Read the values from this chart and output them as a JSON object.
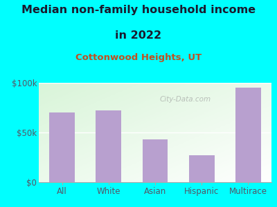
{
  "title_line1": "Median non-family household income",
  "title_line2": "in 2022",
  "subtitle": "Cottonwood Heights, UT",
  "categories": [
    "All",
    "White",
    "Asian",
    "Hispanic",
    "Multirace"
  ],
  "values": [
    70000,
    72000,
    43000,
    27000,
    95000
  ],
  "bar_color": "#b8a0cf",
  "background_color": "#00ffff",
  "plot_bg_color": "#eaf4e8",
  "title_color": "#1a1a2e",
  "subtitle_color": "#c05020",
  "tick_color": "#555566",
  "ylim": [
    0,
    100000
  ],
  "ytick_labels": [
    "$0",
    "$50k",
    "$100k"
  ],
  "title_fontsize": 11.5,
  "subtitle_fontsize": 9.5,
  "tick_fontsize": 8.5,
  "watermark": "City-Data.com"
}
